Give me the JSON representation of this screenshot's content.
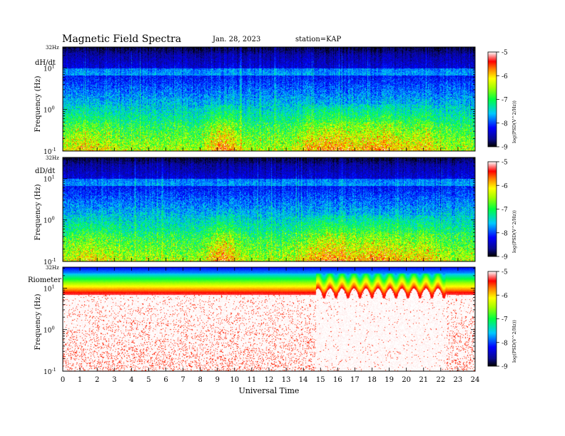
{
  "header": {
    "title": "Magnetic  Field  Spectra",
    "date": "Jan. 28, 2023",
    "station": "station=KAP"
  },
  "chart_data": [
    {
      "type": "heatmap",
      "panel_label": "dH/dt",
      "ylabel": "Frequency  (Hz)",
      "top_label": "32Hz",
      "y_scale": "log",
      "y_ticks": [
        {
          "exp": "-1",
          "v": 0.1
        },
        {
          "exp": "0",
          "v": 1
        },
        {
          "exp": "1",
          "v": 10
        }
      ],
      "xlim": [
        0,
        24
      ],
      "colorbar": {
        "label": "log(PSD(V^2/Hz))",
        "ticks": [
          "-5",
          "-6",
          "-7",
          "-8",
          "-9"
        ],
        "range": [
          -9,
          -5
        ]
      },
      "pattern": "magnetic"
    },
    {
      "type": "heatmap",
      "panel_label": "dD/dt",
      "ylabel": "Frequency  (Hz)",
      "top_label": "32Hz",
      "y_scale": "log",
      "y_ticks": [
        {
          "exp": "-1",
          "v": 0.1
        },
        {
          "exp": "0",
          "v": 1
        },
        {
          "exp": "1",
          "v": 10
        }
      ],
      "xlim": [
        0,
        24
      ],
      "colorbar": {
        "label": "log(PSD(V^2/Hz))",
        "ticks": [
          "-5",
          "-6",
          "-7",
          "-8",
          "-9"
        ],
        "range": [
          -9,
          -5
        ]
      },
      "pattern": "magnetic"
    },
    {
      "type": "heatmap",
      "panel_label": "Riometer",
      "ylabel": "Frequency  (Hz)",
      "top_label": "32Hz",
      "y_scale": "log",
      "y_ticks": [
        {
          "exp": "-1",
          "v": 0.1
        },
        {
          "exp": "0",
          "v": 1
        },
        {
          "exp": "1",
          "v": 10
        }
      ],
      "xlim": [
        0,
        24
      ],
      "xlabel": "Universal  Time",
      "x_ticks": [
        "0",
        "1",
        "2",
        "3",
        "4",
        "5",
        "6",
        "7",
        "8",
        "9",
        "10",
        "11",
        "12",
        "13",
        "14",
        "15",
        "16",
        "17",
        "18",
        "19",
        "20",
        "21",
        "22",
        "23",
        "24"
      ],
      "colorbar": {
        "label": "log(PSD(V^2/Hz))",
        "ticks": [
          "-5",
          "-6",
          "-7",
          "-8",
          "-9"
        ],
        "range": [
          -9,
          -5
        ]
      },
      "pattern": "riometer"
    }
  ]
}
